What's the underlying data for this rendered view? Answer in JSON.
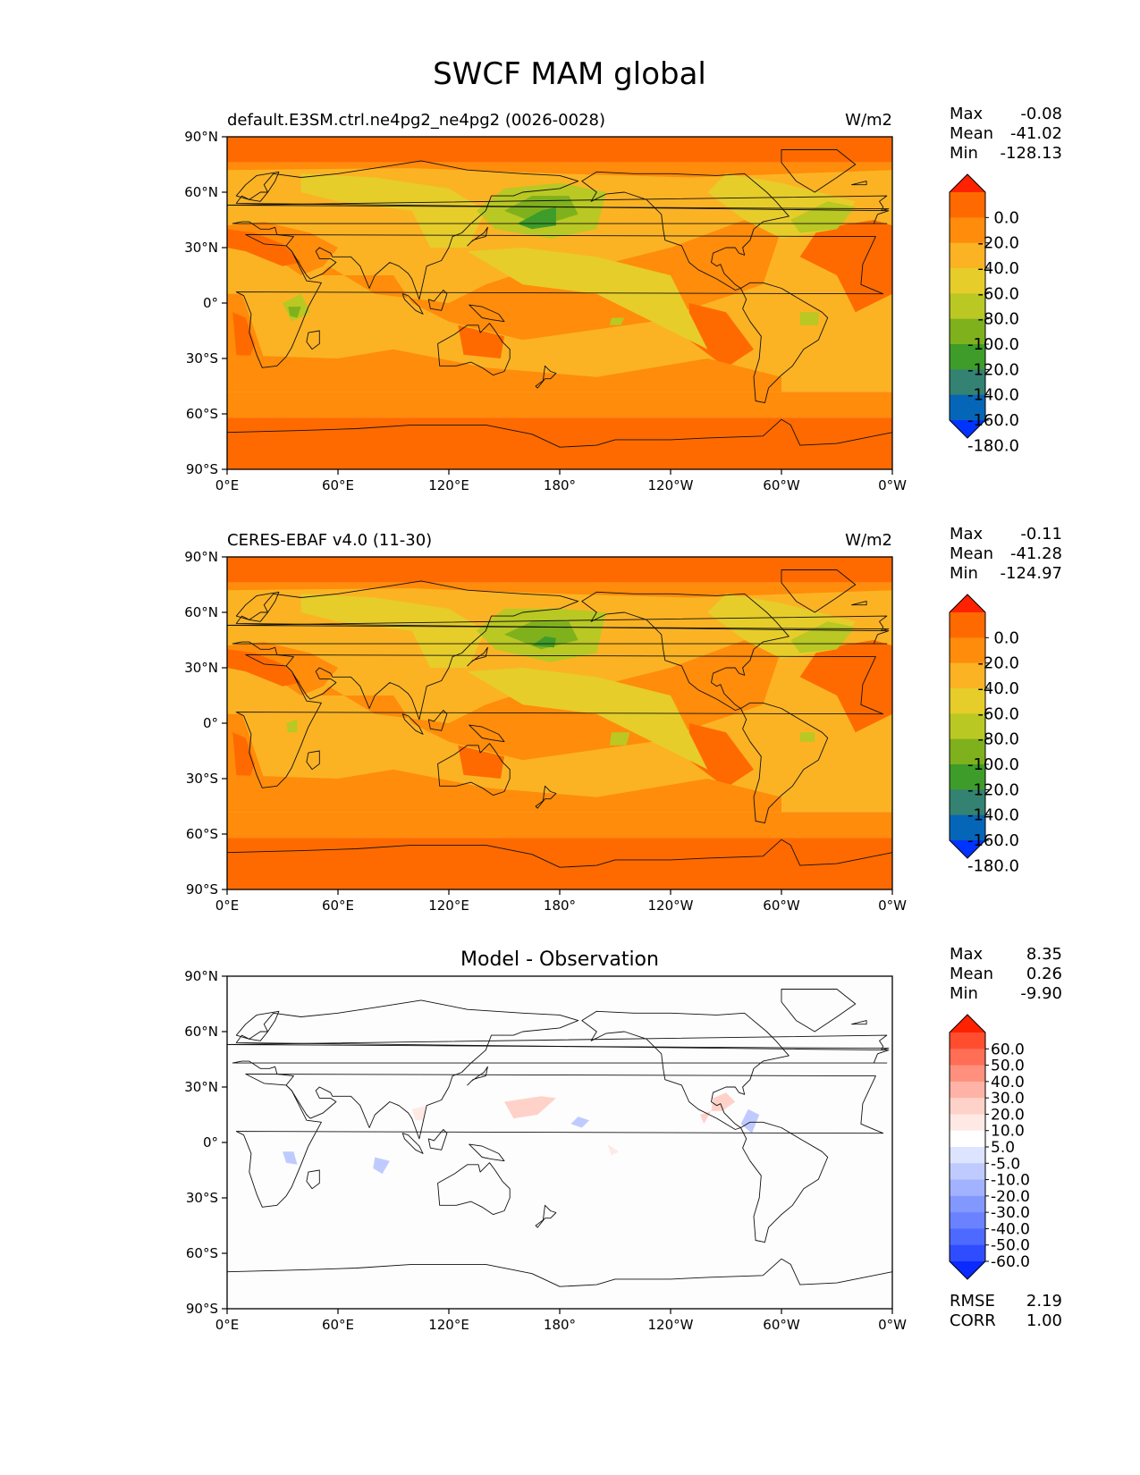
{
  "figure": {
    "title": "SWCF MAM global"
  },
  "axes": {
    "x_ticks": [
      "0°E",
      "60°E",
      "120°E",
      "180°",
      "120°W",
      "60°W",
      "0°W"
    ],
    "y_ticks": [
      "90°N",
      "60°N",
      "30°N",
      "0°",
      "30°S",
      "60°S",
      "90°S"
    ]
  },
  "panels": [
    {
      "id": "model",
      "left_title": "default.E3SM.ctrl.ne4pg2_ne4pg2 (0026-0028)",
      "center_title": "",
      "units": "W/m2",
      "stats": [
        {
          "label": "Max",
          "value": "-0.08"
        },
        {
          "label": "Mean",
          "value": "-41.02"
        },
        {
          "label": "Min",
          "value": "-128.13"
        }
      ],
      "colorbar_labels": [
        "0.0",
        "-20.0",
        "-40.0",
        "-60.0",
        "-80.0",
        "-100.0",
        "-120.0",
        "-140.0",
        "-160.0",
        "-180.0"
      ]
    },
    {
      "id": "obs",
      "left_title": "CERES-EBAF v4.0 (11-30)",
      "center_title": "",
      "units": "W/m2",
      "stats": [
        {
          "label": "Max",
          "value": "-0.11"
        },
        {
          "label": "Mean",
          "value": "-41.28"
        },
        {
          "label": "Min",
          "value": "-124.97"
        }
      ],
      "colorbar_labels": [
        "0.0",
        "-20.0",
        "-40.0",
        "-60.0",
        "-80.0",
        "-100.0",
        "-120.0",
        "-140.0",
        "-160.0",
        "-180.0"
      ]
    },
    {
      "id": "diff",
      "left_title": "",
      "center_title": "Model - Observation",
      "units": "",
      "stats": [
        {
          "label": "Max",
          "value": "8.35"
        },
        {
          "label": "Mean",
          "value": "0.26"
        },
        {
          "label": "Min",
          "value": "-9.90"
        }
      ],
      "colorbar_labels": [
        "60.0",
        "50.0",
        "40.0",
        "30.0",
        "20.0",
        "10.0",
        "5.0",
        "-5.0",
        "-10.0",
        "-20.0",
        "-30.0",
        "-40.0",
        "-50.0",
        "-60.0"
      ],
      "footer_stats": [
        {
          "label": "RMSE",
          "value": "2.19"
        },
        {
          "label": "CORR",
          "value": "1.00"
        }
      ]
    }
  ],
  "colors": {
    "seq": [
      "#ff2200",
      "#ff6a00",
      "#ff8c0a",
      "#fbb324",
      "#e6cd2a",
      "#b9c823",
      "#7fb11d",
      "#3e9c2a",
      "#348271",
      "#0566b7",
      "#0033ff"
    ],
    "div": [
      "#ff2200",
      "#ff4d2e",
      "#ff6e55",
      "#ff907d",
      "#ffb3a6",
      "#ffd2c9",
      "#ffe9e4",
      "#ffffff",
      "#dde4ff",
      "#bfcbff",
      "#a2b2ff",
      "#8398ff",
      "#6a82ff",
      "#4e69ff",
      "#2f4dff",
      "#0a2aff"
    ]
  }
}
